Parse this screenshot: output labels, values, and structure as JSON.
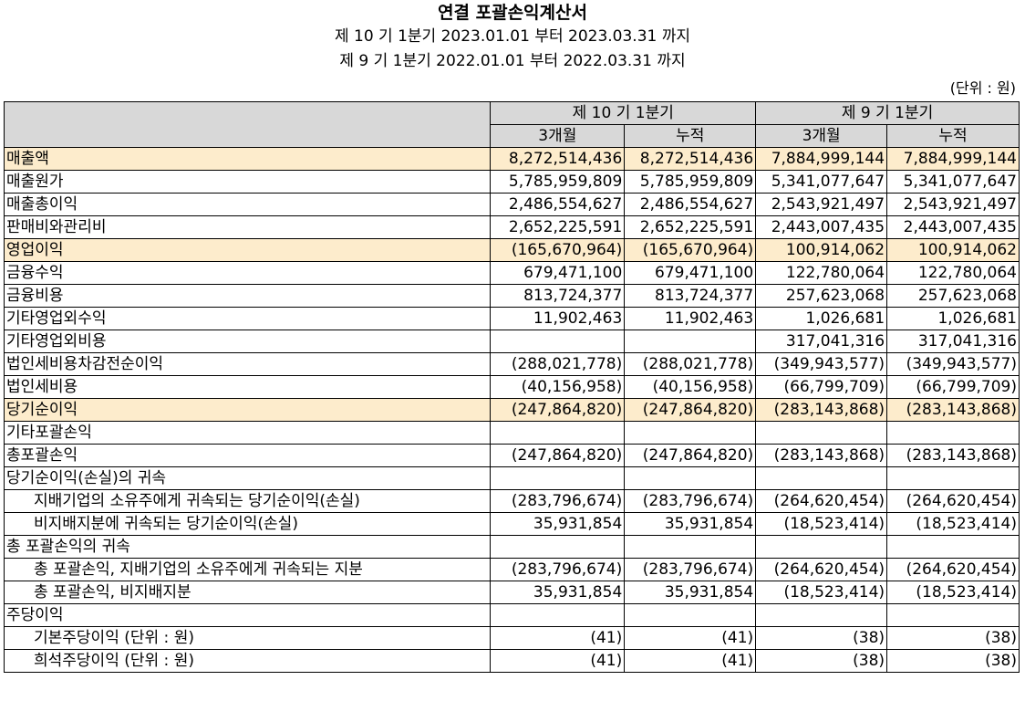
{
  "header": {
    "title": "연결 포괄손익계산서",
    "period_current": "제 10 기 1분기 2023.01.01 부터 2023.03.31 까지",
    "period_prior": "제 9 기 1분기 2022.01.01 부터 2022.03.31 까지",
    "unit": "(단위 : 원)"
  },
  "table": {
    "group_headers": [
      "제 10 기 1분기",
      "제 9 기 1분기"
    ],
    "sub_headers": [
      "3개월",
      "누적",
      "3개월",
      "누적"
    ],
    "rows": [
      {
        "label": "매출액",
        "values": [
          "8,272,514,436",
          "8,272,514,436",
          "7,884,999,144",
          "7,884,999,144"
        ]
      },
      {
        "label": "매출원가",
        "values": [
          "5,785,959,809",
          "5,785,959,809",
          "5,341,077,647",
          "5,341,077,647"
        ]
      },
      {
        "label": "매출총이익",
        "values": [
          "2,486,554,627",
          "2,486,554,627",
          "2,543,921,497",
          "2,543,921,497"
        ]
      },
      {
        "label": "판매비와관리비",
        "values": [
          "2,652,225,591",
          "2,652,225,591",
          "2,443,007,435",
          "2,443,007,435"
        ]
      },
      {
        "label": "영업이익",
        "values": [
          "(165,670,964)",
          "(165,670,964)",
          "100,914,062",
          "100,914,062"
        ]
      },
      {
        "label": "금융수익",
        "values": [
          "679,471,100",
          "679,471,100",
          "122,780,064",
          "122,780,064"
        ]
      },
      {
        "label": "금융비용",
        "values": [
          "813,724,377",
          "813,724,377",
          "257,623,068",
          "257,623,068"
        ]
      },
      {
        "label": "기타영업외수익",
        "values": [
          "11,902,463",
          "11,902,463",
          "1,026,681",
          "1,026,681"
        ]
      },
      {
        "label": "기타영업외비용",
        "values": [
          "",
          "",
          "317,041,316",
          "317,041,316"
        ]
      },
      {
        "label": "법인세비용차감전순이익",
        "values": [
          "(288,021,778)",
          "(288,021,778)",
          "(349,943,577)",
          "(349,943,577)"
        ]
      },
      {
        "label": "법인세비용",
        "values": [
          "(40,156,958)",
          "(40,156,958)",
          "(66,799,709)",
          "(66,799,709)"
        ]
      },
      {
        "label": "당기순이익",
        "values": [
          "(247,864,820)",
          "(247,864,820)",
          "(283,143,868)",
          "(283,143,868)"
        ]
      },
      {
        "label": "기타포괄손익",
        "values": [
          "",
          "",
          "",
          ""
        ]
      },
      {
        "label": "총포괄손익",
        "values": [
          "(247,864,820)",
          "(247,864,820)",
          "(283,143,868)",
          "(283,143,868)"
        ]
      },
      {
        "label": "당기순이익(손실)의 귀속",
        "values": [
          "",
          "",
          "",
          ""
        ]
      },
      {
        "label": "지배기업의 소유주에게 귀속되는 당기순이익(손실)",
        "values": [
          "(283,796,674)",
          "(283,796,674)",
          "(264,620,454)",
          "(264,620,454)"
        ]
      },
      {
        "label": "비지배지분에 귀속되는 당기순이익(손실)",
        "values": [
          "35,931,854",
          "35,931,854",
          "(18,523,414)",
          "(18,523,414)"
        ]
      },
      {
        "label": "총 포괄손익의 귀속",
        "values": [
          "",
          "",
          "",
          ""
        ]
      },
      {
        "label": "총 포괄손익, 지배기업의 소유주에게 귀속되는 지분",
        "values": [
          "(283,796,674)",
          "(283,796,674)",
          "(264,620,454)",
          "(264,620,454)"
        ]
      },
      {
        "label": "총 포괄손익, 비지배지분",
        "values": [
          "35,931,854",
          "35,931,854",
          "(18,523,414)",
          "(18,523,414)"
        ]
      },
      {
        "label": "주당이익",
        "values": [
          "",
          "",
          "",
          ""
        ]
      },
      {
        "label": "기본주당이익 (단위 : 원)",
        "values": [
          "(41)",
          "(41)",
          "(38)",
          "(38)"
        ]
      },
      {
        "label": "희석주당이익 (단위 : 원)",
        "values": [
          "(41)",
          "(41)",
          "(38)",
          "(38)"
        ]
      }
    ]
  },
  "colors": {
    "header_bg": "#d8d8d8",
    "highlight_row_bg": "#fdeccc"
  }
}
